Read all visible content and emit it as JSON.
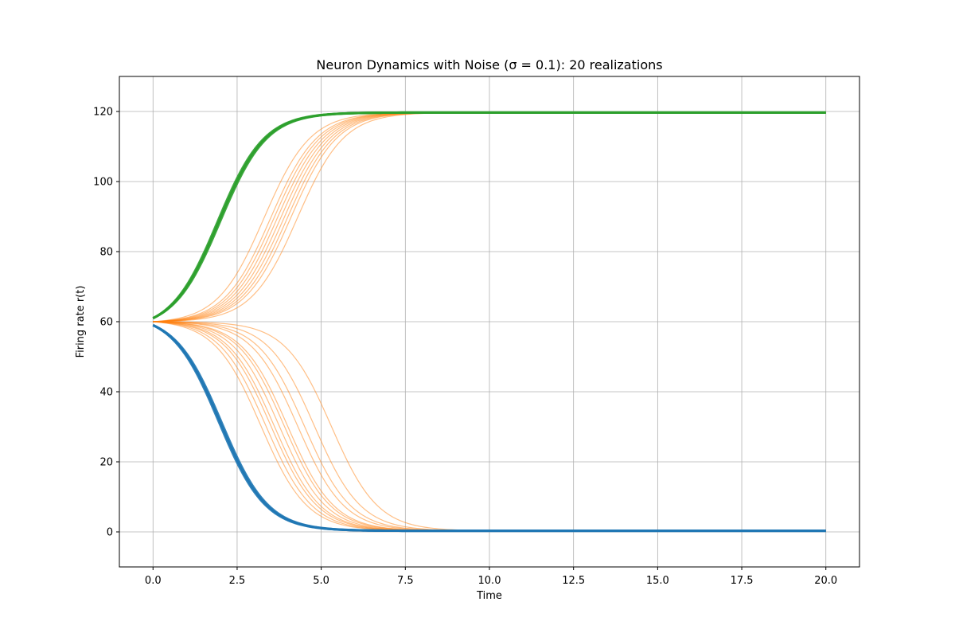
{
  "chart_data": {
    "type": "line",
    "title": "Neuron Dynamics with Noise (σ = 0.1): 20 realizations",
    "xlabel": "Time",
    "ylabel": "Firing rate r(t)",
    "xlim": [
      -1,
      21
    ],
    "ylim": [
      -10,
      130
    ],
    "xticks": [
      0.0,
      2.5,
      5.0,
      7.5,
      10.0,
      12.5,
      15.0,
      17.5,
      20.0
    ],
    "xtick_labels": [
      "0.0",
      "2.5",
      "5.0",
      "7.5",
      "10.0",
      "12.5",
      "15.0",
      "17.5",
      "20.0"
    ],
    "yticks": [
      0,
      20,
      40,
      60,
      80,
      100,
      120
    ],
    "ytick_labels": [
      "0",
      "20",
      "40",
      "60",
      "80",
      "100",
      "120"
    ],
    "grid": true,
    "colors": {
      "high_start": "#2ca02c",
      "low_start": "#1f77b4",
      "mid_start": "#ff7f0e"
    },
    "series_groups": [
      {
        "key": "mid_start",
        "color": "#ff7f0e",
        "opacity": 0.5,
        "line_width": 1.2,
        "initial_value": 60,
        "realizations": [
          {
            "direction": "up",
            "t_half": 3.3
          },
          {
            "direction": "up",
            "t_half": 3.5
          },
          {
            "direction": "up",
            "t_half": 3.6
          },
          {
            "direction": "up",
            "t_half": 3.7
          },
          {
            "direction": "up",
            "t_half": 3.8
          },
          {
            "direction": "up",
            "t_half": 3.9
          },
          {
            "direction": "up",
            "t_half": 4.0
          },
          {
            "direction": "up",
            "t_half": 4.1
          },
          {
            "direction": "up",
            "t_half": 4.3
          },
          {
            "direction": "down",
            "t_half": 3.2
          },
          {
            "direction": "down",
            "t_half": 3.35
          },
          {
            "direction": "down",
            "t_half": 3.5
          },
          {
            "direction": "down",
            "t_half": 3.6
          },
          {
            "direction": "down",
            "t_half": 3.75
          },
          {
            "direction": "down",
            "t_half": 3.9
          },
          {
            "direction": "down",
            "t_half": 4.0
          },
          {
            "direction": "down",
            "t_half": 4.3
          },
          {
            "direction": "down",
            "t_half": 4.5
          },
          {
            "direction": "down",
            "t_half": 4.8
          },
          {
            "direction": "down",
            "t_half": 5.3
          }
        ]
      },
      {
        "key": "high_start",
        "color": "#2ca02c",
        "opacity": 0.9,
        "line_width": 3,
        "initial_value": 61,
        "realizations": [
          {
            "direction": "up",
            "t_half": 1.92
          },
          {
            "direction": "up",
            "t_half": 1.96
          },
          {
            "direction": "up",
            "t_half": 2.0
          }
        ]
      },
      {
        "key": "low_start",
        "color": "#1f77b4",
        "opacity": 0.9,
        "line_width": 3,
        "initial_value": 59,
        "realizations": [
          {
            "direction": "down",
            "t_half": 1.96
          },
          {
            "direction": "down",
            "t_half": 2.0
          },
          {
            "direction": "down",
            "t_half": 2.04
          }
        ]
      }
    ],
    "sigmoid_params": {
      "upper_asymptote": 119.7,
      "lower_asymptote": 0.3,
      "steepness": 1.45,
      "t_end": 20
    }
  }
}
